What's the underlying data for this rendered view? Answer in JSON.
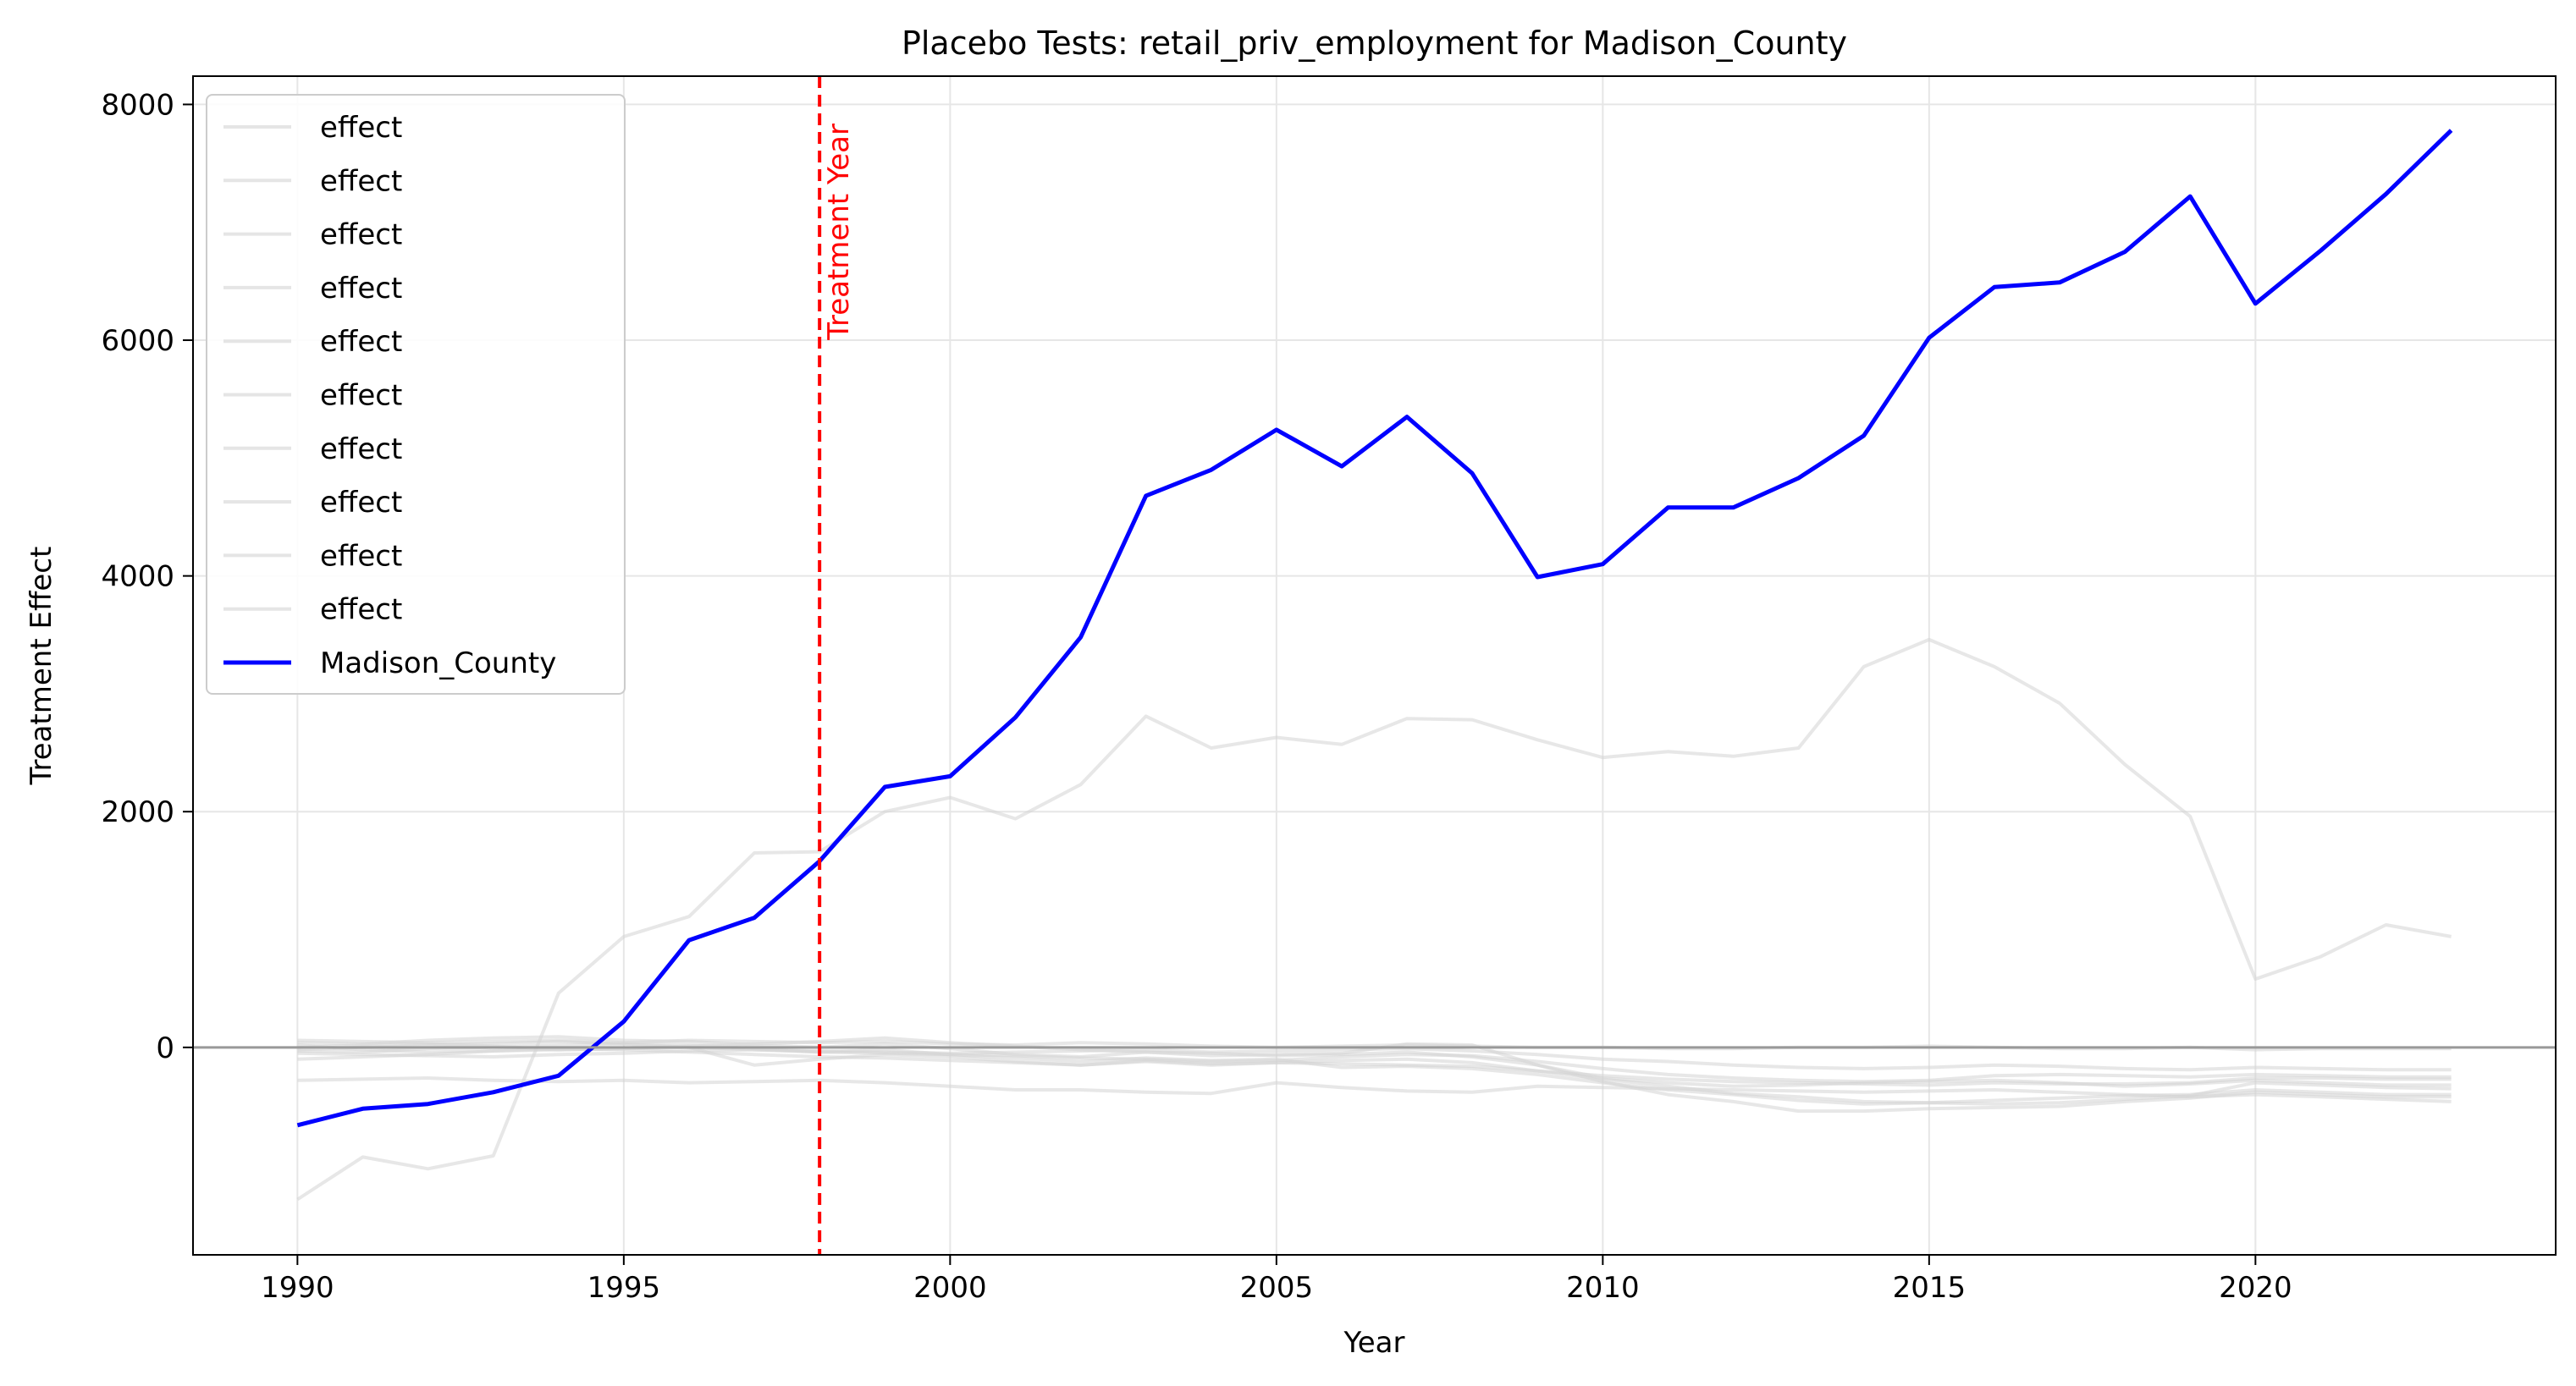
{
  "chart_data": {
    "type": "line",
    "title": "Placebo Tests: retail_priv_employment for Madison_County",
    "xlabel": "Year",
    "ylabel": "Treatment Effect",
    "xlim": [
      1988.4,
      2024.6
    ],
    "ylim": [
      -1760,
      8240
    ],
    "xticks": [
      1990,
      1995,
      2000,
      2005,
      2010,
      2015,
      2020
    ],
    "yticks": [
      0,
      2000,
      4000,
      6000,
      8000
    ],
    "grid": true,
    "legend_position": "top-left",
    "x": [
      1990,
      1991,
      1992,
      1993,
      1994,
      1995,
      1996,
      1997,
      1998,
      1999,
      2000,
      2001,
      2002,
      2003,
      2004,
      2005,
      2006,
      2007,
      2008,
      2009,
      2010,
      2011,
      2012,
      2013,
      2014,
      2015,
      2016,
      2017,
      2018,
      2019,
      2020,
      2021,
      2022,
      2023
    ],
    "treatment": {
      "year": 1998,
      "label": "Treatment Year",
      "color": "#ff0000"
    },
    "zero_line_color": "#999999",
    "placebo_color": "#d3d3d3",
    "treated_color": "#0000ff",
    "series": [
      {
        "name": "effect",
        "role": "placebo",
        "values": [
          -1290,
          -930,
          -1030,
          -920,
          460,
          940,
          1110,
          1650,
          1660,
          2000,
          2120,
          1940,
          2230,
          2810,
          2540,
          2630,
          2570,
          2790,
          2780,
          2610,
          2460,
          2510,
          2470,
          2540,
          3230,
          3460,
          3230,
          2920,
          2400,
          1960,
          580,
          770,
          1040,
          940
        ]
      },
      {
        "name": "effect",
        "role": "placebo",
        "values": [
          40,
          30,
          60,
          80,
          90,
          60,
          50,
          20,
          0,
          30,
          -10,
          -60,
          -80,
          -40,
          -70,
          -60,
          -50,
          30,
          20,
          -150,
          -260,
          -300,
          -330,
          -320,
          -300,
          -290,
          -280,
          -300,
          -330,
          -310,
          -280,
          -300,
          -320,
          -320
        ]
      },
      {
        "name": "effect",
        "role": "placebo",
        "values": [
          -20,
          0,
          20,
          30,
          50,
          30,
          20,
          -10,
          -40,
          -20,
          -60,
          -90,
          -120,
          -90,
          -110,
          -100,
          -170,
          -160,
          -180,
          -230,
          -300,
          -360,
          -400,
          -450,
          -480,
          -470,
          -450,
          -430,
          -410,
          -400,
          -360,
          -380,
          -400,
          -400
        ]
      },
      {
        "name": "effect",
        "role": "placebo",
        "values": [
          -100,
          -80,
          -60,
          -30,
          -10,
          -20,
          -40,
          -60,
          -80,
          -90,
          -110,
          -130,
          -150,
          -120,
          -150,
          -130,
          -140,
          -150,
          -160,
          -200,
          -240,
          -270,
          -290,
          -300,
          -310,
          -320,
          -300,
          -310,
          -310,
          -300,
          -260,
          -260,
          -270,
          -270
        ]
      },
      {
        "name": "effect",
        "role": "placebo",
        "values": [
          60,
          50,
          40,
          50,
          60,
          40,
          60,
          50,
          40,
          50,
          30,
          20,
          40,
          30,
          10,
          0,
          10,
          20,
          10,
          0,
          0,
          -10,
          -10,
          0,
          0,
          10,
          0,
          -10,
          -10,
          0,
          -20,
          -10,
          -10,
          -10
        ]
      },
      {
        "name": "effect",
        "role": "placebo",
        "values": [
          -280,
          -270,
          -260,
          -280,
          -290,
          -280,
          -300,
          -290,
          -280,
          -300,
          -330,
          -360,
          -360,
          -380,
          -390,
          -300,
          -340,
          -370,
          -380,
          -330,
          -340,
          -350,
          -360,
          -370,
          -380,
          -370,
          -360,
          -380,
          -400,
          -420,
          -400,
          -420,
          -440,
          -460
        ]
      },
      {
        "name": "effect",
        "role": "placebo",
        "values": [
          -30,
          -40,
          -10,
          0,
          20,
          30,
          0,
          -20,
          -40,
          -50,
          -60,
          -70,
          -90,
          -100,
          -120,
          -110,
          -80,
          -60,
          -70,
          -120,
          -180,
          -230,
          -260,
          -280,
          -290,
          -280,
          -240,
          -230,
          -240,
          -250,
          -230,
          -240,
          -250,
          -250
        ]
      },
      {
        "name": "effect",
        "role": "placebo",
        "values": [
          0,
          20,
          30,
          10,
          -20,
          -10,
          0,
          -150,
          -100,
          -60,
          -80,
          -120,
          -150,
          -110,
          -140,
          -130,
          -110,
          -100,
          -130,
          -200,
          -270,
          -330,
          -390,
          -420,
          -460,
          -470,
          -480,
          -470,
          -440,
          -410,
          -300,
          -320,
          -340,
          -350
        ]
      },
      {
        "name": "effect",
        "role": "placebo",
        "values": [
          20,
          -20,
          -40,
          -30,
          -20,
          -10,
          10,
          30,
          50,
          80,
          40,
          10,
          -20,
          -40,
          -50,
          -70,
          -60,
          -40,
          -80,
          -150,
          -290,
          -400,
          -460,
          -540,
          -540,
          -520,
          -510,
          -500,
          -460,
          -430,
          -380,
          -400,
          -420,
          -420
        ]
      },
      {
        "name": "effect",
        "role": "placebo",
        "values": [
          -50,
          -60,
          -70,
          -80,
          -60,
          -50,
          -30,
          -20,
          -30,
          -40,
          -50,
          -40,
          -30,
          -20,
          -40,
          -30,
          -20,
          -10,
          -30,
          -60,
          -100,
          -120,
          -150,
          -170,
          -180,
          -170,
          -150,
          -160,
          -180,
          -190,
          -170,
          -180,
          -190,
          -190
        ]
      },
      {
        "name": "Madison_County",
        "role": "treated",
        "values": [
          -660,
          -520,
          -480,
          -380,
          -240,
          220,
          910,
          1100,
          1580,
          2210,
          2300,
          2800,
          3480,
          4680,
          4900,
          5240,
          4930,
          5350,
          4870,
          3990,
          4100,
          4580,
          4580,
          4830,
          5190,
          6020,
          6450,
          6490,
          6750,
          7220,
          6310,
          6760,
          7240,
          7780
        ]
      }
    ]
  }
}
